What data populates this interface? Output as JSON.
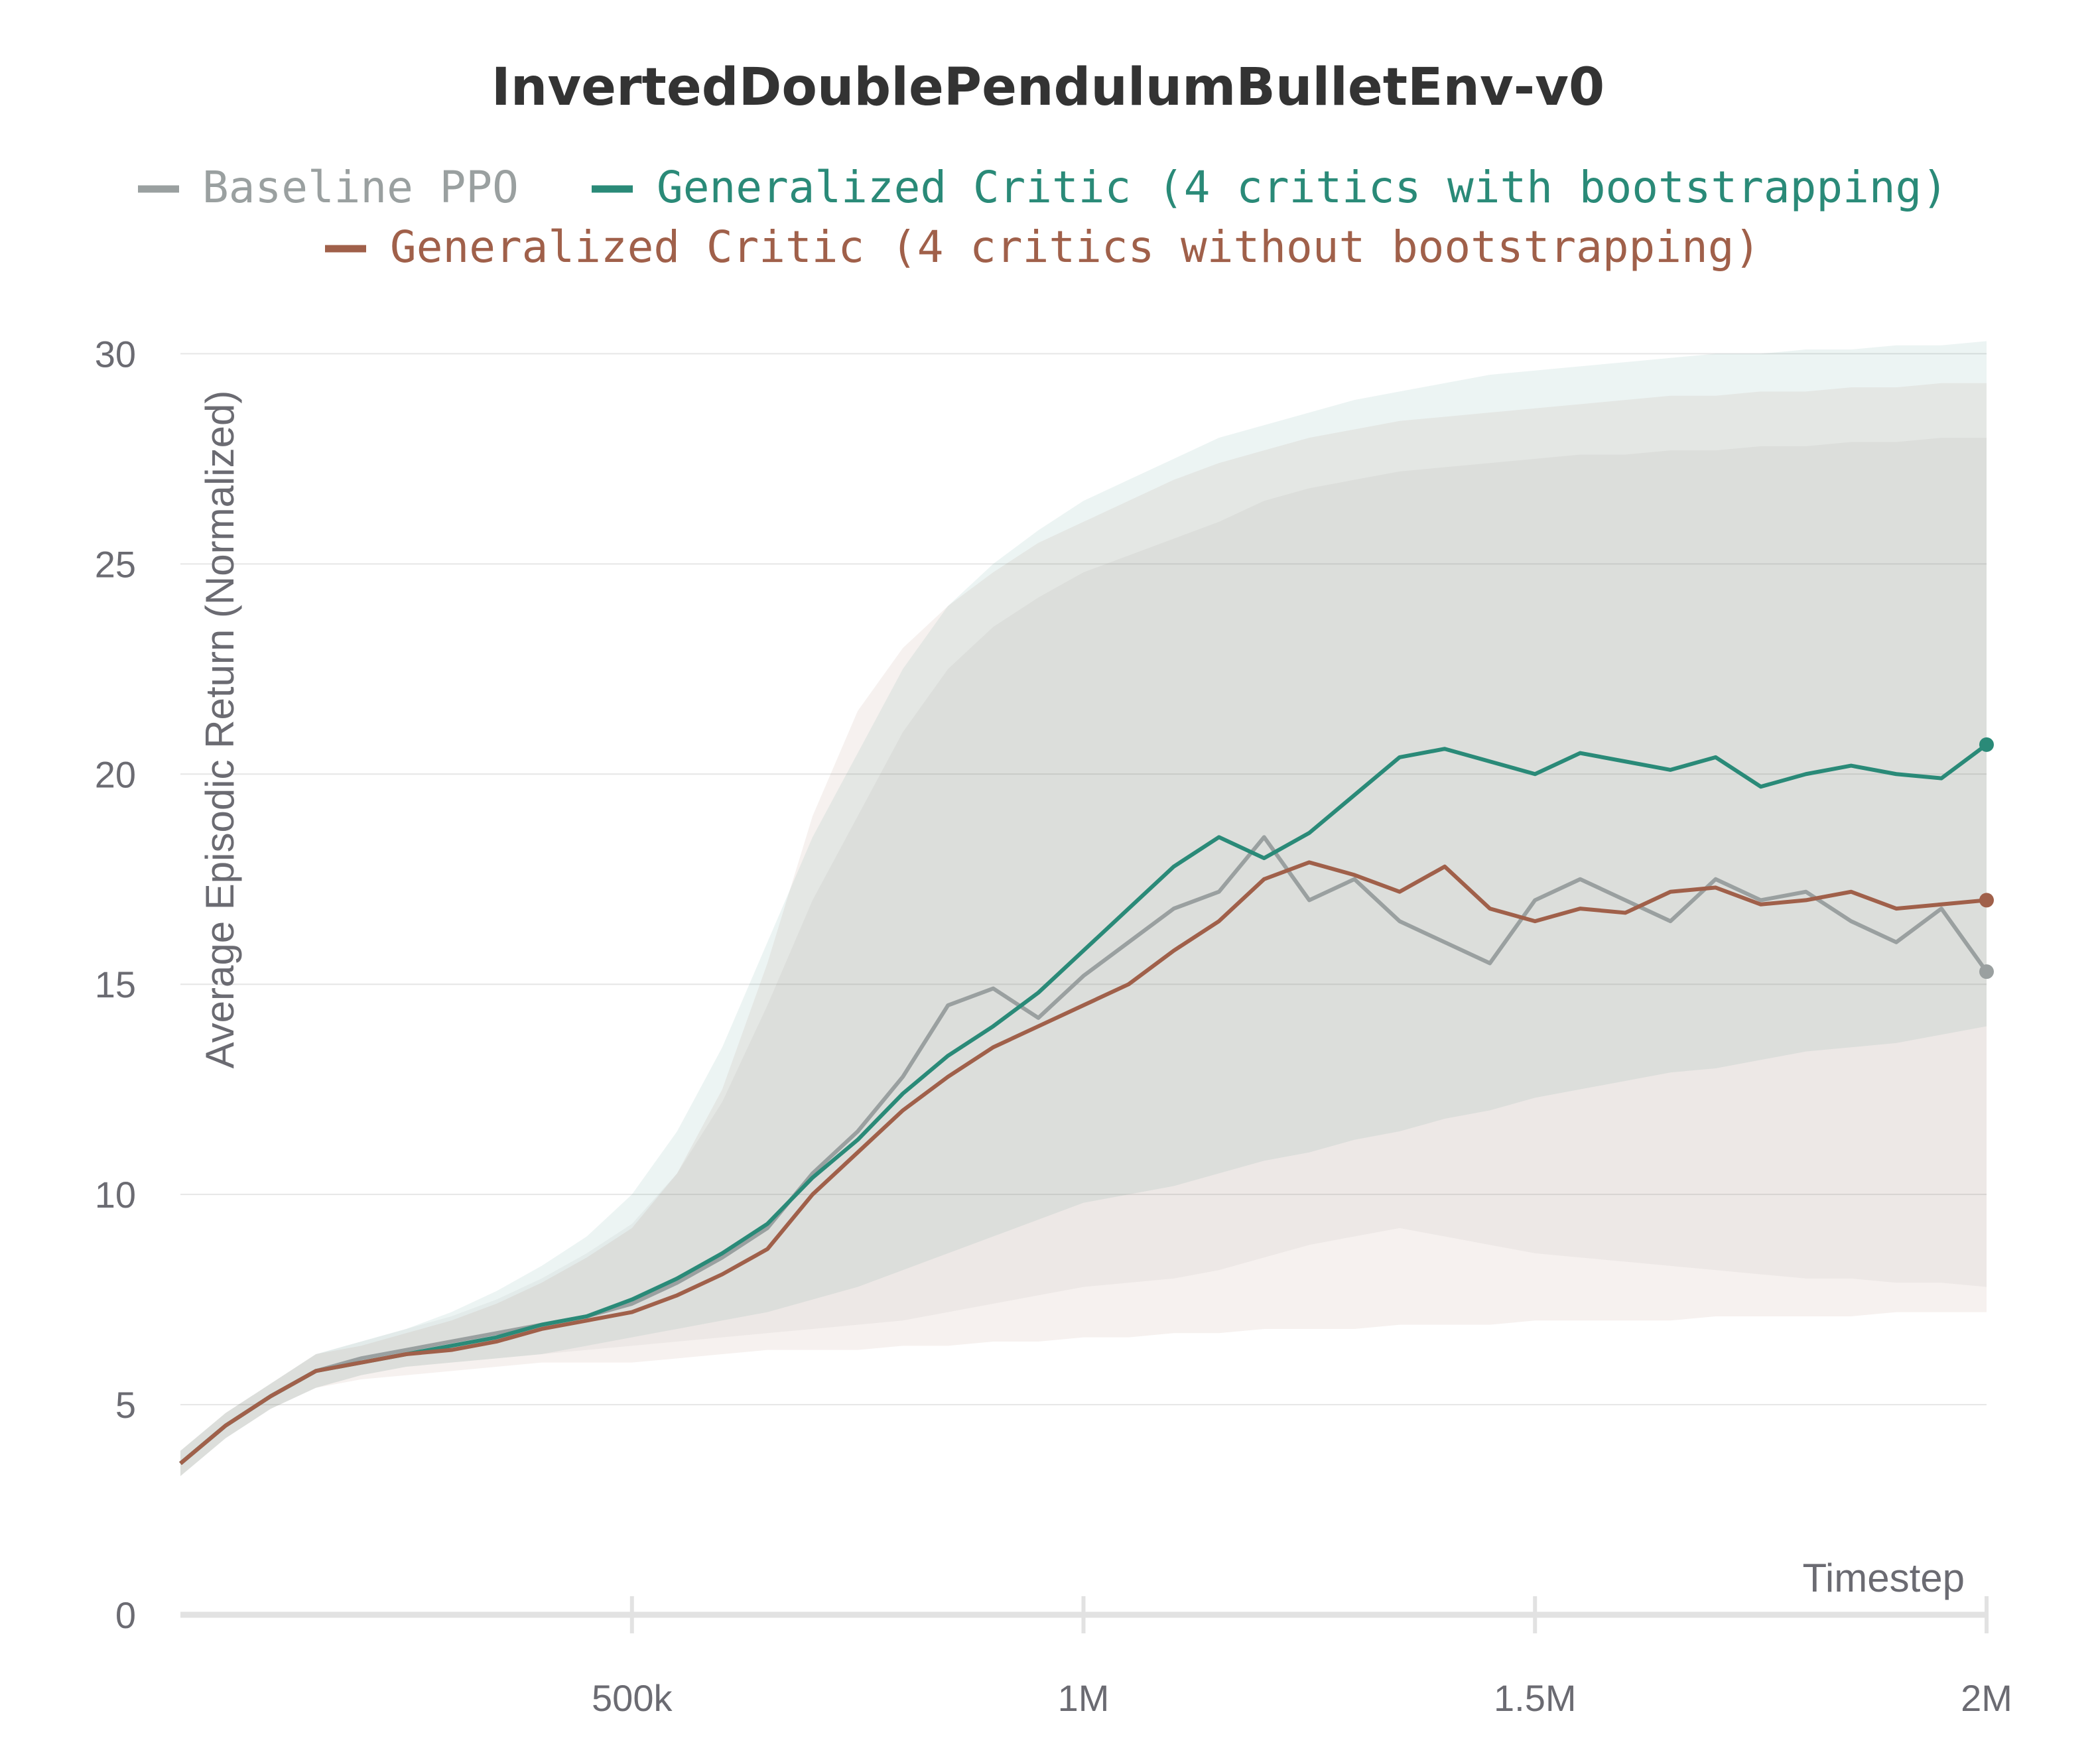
{
  "chart_data": {
    "type": "line",
    "title": "InvertedDoublePendulumBulletEnv-v0",
    "xlabel": "Timestep",
    "ylabel": "Average Episodic Return (Normalized)",
    "xlim": [
      0,
      2000000
    ],
    "ylim": [
      0,
      31
    ],
    "x_ticks": [
      500000,
      1000000,
      1500000,
      2000000
    ],
    "x_tick_labels": [
      "500k",
      "1M",
      "1.5M",
      "2M"
    ],
    "y_ticks": [
      0,
      5,
      10,
      15,
      20,
      25,
      30
    ],
    "y_tick_labels": [
      "0",
      "5",
      "10",
      "15",
      "20",
      "25",
      "30"
    ],
    "grid": true,
    "legend_position": "top-center",
    "x": [
      0,
      50000,
      100000,
      150000,
      200000,
      250000,
      300000,
      350000,
      400000,
      450000,
      500000,
      550000,
      600000,
      650000,
      700000,
      750000,
      800000,
      850000,
      900000,
      950000,
      1000000,
      1050000,
      1100000,
      1150000,
      1200000,
      1250000,
      1300000,
      1350000,
      1400000,
      1450000,
      1500000,
      1550000,
      1600000,
      1650000,
      1700000,
      1750000,
      1800000,
      1850000,
      1900000,
      1950000,
      2000000
    ],
    "series": [
      {
        "name": "Baseline PPO",
        "color": "#9aa0a0",
        "values": [
          3.6,
          4.5,
          5.2,
          5.8,
          6.1,
          6.3,
          6.5,
          6.7,
          6.9,
          7.1,
          7.4,
          7.9,
          8.5,
          9.2,
          10.5,
          11.5,
          12.8,
          14.5,
          14.9,
          14.2,
          15.2,
          16.0,
          16.8,
          17.2,
          18.5,
          17.0,
          17.5,
          16.5,
          16.0,
          15.5,
          17.0,
          17.5,
          17.0,
          16.5,
          17.5,
          17.0,
          17.2,
          16.5,
          16.0,
          16.8,
          15.3
        ],
        "band_lower": [
          3.3,
          4.2,
          4.9,
          5.4,
          5.7,
          5.9,
          6.0,
          6.1,
          6.2,
          6.3,
          6.4,
          6.5,
          6.6,
          6.7,
          6.8,
          6.9,
          7.0,
          7.2,
          7.4,
          7.6,
          7.8,
          7.9,
          8.0,
          8.2,
          8.5,
          8.8,
          9.0,
          9.2,
          9.0,
          8.8,
          8.6,
          8.5,
          8.4,
          8.3,
          8.2,
          8.1,
          8.0,
          8.0,
          7.9,
          7.9,
          7.8
        ],
        "band_upper": [
          3.9,
          4.8,
          5.5,
          6.2,
          6.5,
          6.8,
          7.1,
          7.5,
          8.0,
          8.6,
          9.3,
          10.5,
          12.2,
          14.5,
          17.0,
          19.0,
          21.0,
          22.5,
          23.5,
          24.2,
          24.8,
          25.2,
          25.6,
          26.0,
          26.5,
          26.8,
          27.0,
          27.2,
          27.3,
          27.4,
          27.5,
          27.6,
          27.6,
          27.7,
          27.7,
          27.8,
          27.8,
          27.9,
          27.9,
          28.0,
          28.0
        ]
      },
      {
        "name": "Generalized Critic (4 critics with bootstrapping)",
        "color": "#2a8a78",
        "values": [
          3.6,
          4.5,
          5.2,
          5.8,
          6.0,
          6.2,
          6.4,
          6.6,
          6.9,
          7.1,
          7.5,
          8.0,
          8.6,
          9.3,
          10.4,
          11.3,
          12.4,
          13.3,
          14.0,
          14.8,
          15.8,
          16.8,
          17.8,
          18.5,
          18.0,
          18.6,
          19.5,
          20.4,
          20.6,
          20.3,
          20.0,
          20.5,
          20.3,
          20.1,
          20.4,
          19.7,
          20.0,
          20.2,
          20.0,
          19.9,
          20.7
        ],
        "band_lower": [
          3.3,
          4.2,
          4.9,
          5.4,
          5.7,
          5.9,
          6.0,
          6.1,
          6.2,
          6.4,
          6.6,
          6.8,
          7.0,
          7.2,
          7.5,
          7.8,
          8.2,
          8.6,
          9.0,
          9.4,
          9.8,
          10.0,
          10.2,
          10.5,
          10.8,
          11.0,
          11.3,
          11.5,
          11.8,
          12.0,
          12.3,
          12.5,
          12.7,
          12.9,
          13.0,
          13.2,
          13.4,
          13.5,
          13.6,
          13.8,
          14.0
        ],
        "band_upper": [
          3.9,
          4.8,
          5.5,
          6.2,
          6.5,
          6.8,
          7.2,
          7.7,
          8.3,
          9.0,
          10.0,
          11.5,
          13.5,
          16.0,
          18.5,
          20.5,
          22.5,
          24.0,
          25.0,
          25.8,
          26.5,
          27.0,
          27.5,
          28.0,
          28.3,
          28.6,
          28.9,
          29.1,
          29.3,
          29.5,
          29.6,
          29.7,
          29.8,
          29.9,
          30.0,
          30.0,
          30.1,
          30.1,
          30.2,
          30.2,
          30.3
        ]
      },
      {
        "name": "Generalized Critic (4 critics without bootstrapping)",
        "color": "#a0604a",
        "values": [
          3.6,
          4.5,
          5.2,
          5.8,
          6.0,
          6.2,
          6.3,
          6.5,
          6.8,
          7.0,
          7.2,
          7.6,
          8.1,
          8.7,
          10.0,
          11.0,
          12.0,
          12.8,
          13.5,
          14.0,
          14.5,
          15.0,
          15.8,
          16.5,
          17.5,
          17.9,
          17.6,
          17.2,
          17.8,
          16.8,
          16.5,
          16.8,
          16.7,
          17.2,
          17.3,
          16.9,
          17.0,
          17.2,
          16.8,
          16.9,
          17.0
        ],
        "band_lower": [
          3.3,
          4.2,
          4.9,
          5.4,
          5.6,
          5.7,
          5.8,
          5.9,
          6.0,
          6.0,
          6.0,
          6.1,
          6.2,
          6.3,
          6.3,
          6.3,
          6.4,
          6.4,
          6.5,
          6.5,
          6.6,
          6.6,
          6.7,
          6.7,
          6.8,
          6.8,
          6.8,
          6.9,
          6.9,
          6.9,
          7.0,
          7.0,
          7.0,
          7.0,
          7.1,
          7.1,
          7.1,
          7.1,
          7.2,
          7.2,
          7.2
        ],
        "band_upper": [
          3.9,
          4.8,
          5.5,
          6.2,
          6.4,
          6.7,
          7.0,
          7.4,
          7.9,
          8.5,
          9.2,
          10.5,
          12.5,
          15.5,
          19.0,
          21.5,
          23.0,
          24.0,
          24.8,
          25.5,
          26.0,
          26.5,
          27.0,
          27.4,
          27.7,
          28.0,
          28.2,
          28.4,
          28.5,
          28.6,
          28.7,
          28.8,
          28.9,
          29.0,
          29.0,
          29.1,
          29.1,
          29.2,
          29.2,
          29.3,
          29.3
        ]
      }
    ]
  }
}
